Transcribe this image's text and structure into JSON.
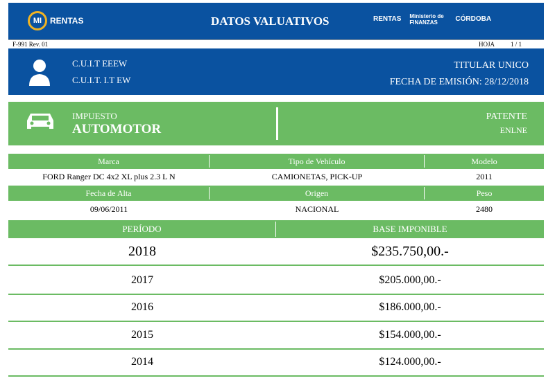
{
  "header": {
    "logo_mi": "MI",
    "logo_rentas": "RENTAS",
    "title": "DATOS VALUATIVOS",
    "logos": [
      "RENTAS",
      "Ministerio de FINANZAS",
      "CÓRDOBA"
    ]
  },
  "strip": {
    "form": "F-991 Rev. 01",
    "hoja_label": "HOJA",
    "hoja": "1 / 1"
  },
  "person": {
    "cuit1": "C.U.I.T EEEW",
    "cuit2": "C.U.I.T. I.T EW",
    "titular": "TITULAR UNICO",
    "fecha": "FECHA DE EMISIÓN: 28/12/2018"
  },
  "impuesto": {
    "label": "IMPUESTO",
    "value": "AUTOMOTOR",
    "patente_label": "PATENTE",
    "patente": "ENLNE"
  },
  "vehicle": {
    "h1": [
      "Marca",
      "Tipo de Vehículo",
      "Modelo"
    ],
    "v1": [
      "FORD Ranger DC 4x2 XL plus 2.3 L N",
      "CAMIONETAS, PICK-UP",
      "2011"
    ],
    "h2": [
      "Fecha de Alta",
      "Origen",
      "Peso"
    ],
    "v2": [
      "09/06/2011",
      "NACIONAL",
      "2480"
    ]
  },
  "periods": {
    "h": [
      "PERÍODO",
      "BASE IMPONIBLE"
    ],
    "rows": [
      [
        "2018",
        "$235.750,00.-"
      ],
      [
        "2017",
        "$205.000,00.-"
      ],
      [
        "2016",
        "$186.000,00.-"
      ],
      [
        "2015",
        "$154.000,00.-"
      ],
      [
        "2014",
        "$124.000,00.-"
      ]
    ]
  }
}
